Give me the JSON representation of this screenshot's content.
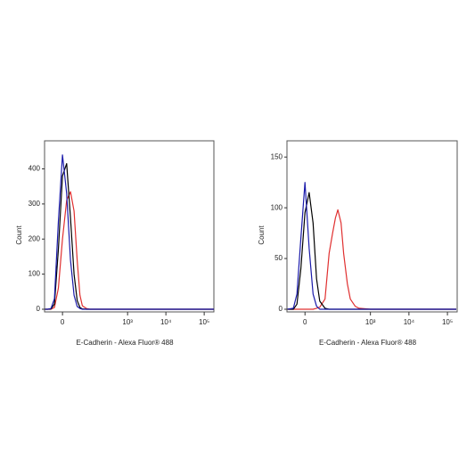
{
  "chart_data": [
    {
      "type": "line",
      "scale": "biexponential",
      "xlabel": "E-Cadherin - Alexa Fluor® 488",
      "ylabel": "Count",
      "x": [
        -50,
        -40,
        -30,
        -20,
        -10,
        0,
        10,
        20,
        30,
        40,
        50,
        60,
        80,
        100,
        130,
        170,
        220,
        300,
        1000,
        10000,
        100000,
        179000
      ],
      "series": [
        {
          "color": "#e03030",
          "values": [
            0,
            0,
            0,
            5,
            60,
            200,
            310,
            335,
            280,
            140,
            40,
            10,
            2,
            0,
            0,
            0,
            0,
            0,
            0,
            0,
            0,
            0
          ]
        },
        {
          "color": "#000000",
          "values": [
            0,
            0,
            1,
            15,
            170,
            380,
            415,
            260,
            100,
            25,
            5,
            1,
            0,
            0,
            0,
            0,
            0,
            0,
            0,
            0,
            0,
            0
          ]
        },
        {
          "color": "#1a1aaa",
          "values": [
            0,
            0,
            2,
            30,
            250,
            440,
            330,
            140,
            40,
            8,
            2,
            0,
            0,
            0,
            0,
            0,
            0,
            0,
            0,
            0,
            0,
            0
          ]
        }
      ],
      "xlim": [
        -52,
        179000
      ],
      "xticks": [
        0,
        {
          "value": 1000,
          "label": "10³"
        },
        {
          "value": 10000,
          "label": "10⁴"
        },
        {
          "value": 100000,
          "label": "10⁵"
        }
      ],
      "ylim": [
        0,
        480
      ],
      "yticks": [
        0,
        100,
        200,
        300,
        400
      ]
    },
    {
      "type": "line",
      "scale": "biexponential",
      "xlabel": "E-Cadherin - Alexa Fluor® 488",
      "ylabel": "Count",
      "x": [
        -50,
        -30,
        -20,
        -10,
        0,
        10,
        20,
        30,
        40,
        60,
        80,
        100,
        120,
        140,
        170,
        200,
        250,
        300,
        400,
        500,
        1000,
        10000,
        100000,
        170000
      ],
      "series": [
        {
          "color": "#e03030",
          "values": [
            0,
            0,
            0,
            0,
            0,
            0,
            0,
            1,
            2,
            10,
            55,
            75,
            90,
            98,
            85,
            55,
            25,
            10,
            3,
            1,
            0,
            0,
            0,
            0
          ]
        },
        {
          "color": "#000000",
          "values": [
            0,
            0,
            5,
            40,
            95,
            115,
            85,
            30,
            8,
            1,
            0,
            0,
            0,
            0,
            0,
            0,
            0,
            0,
            0,
            0,
            0,
            0,
            0,
            0
          ]
        },
        {
          "color": "#1a1aaa",
          "values": [
            0,
            1,
            15,
            70,
            125,
            60,
            15,
            3,
            0,
            0,
            0,
            0,
            0,
            0,
            0,
            0,
            0,
            0,
            0,
            0,
            0,
            0,
            0,
            0
          ]
        }
      ],
      "xlim": [
        -52,
        179000
      ],
      "xticks": [
        0,
        {
          "value": 1000,
          "label": "10³"
        },
        {
          "value": 10000,
          "label": "10⁴"
        },
        {
          "value": 100000,
          "label": "10⁵"
        }
      ],
      "ylim": [
        0,
        166
      ],
      "yticks": [
        0,
        50,
        100,
        150
      ]
    }
  ]
}
